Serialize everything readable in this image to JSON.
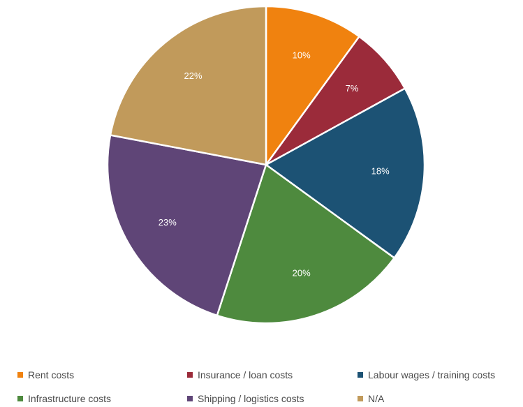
{
  "chart_data": {
    "type": "pie",
    "title": "",
    "start_angle_deg": 0,
    "direction": "clockwise",
    "legend_position": "bottom",
    "slices": [
      {
        "label": "Rent costs",
        "value": 10,
        "display": "10%",
        "color": "#F0820F"
      },
      {
        "label": "Insurance / loan costs",
        "value": 7,
        "display": "7%",
        "color": "#9B2B3A"
      },
      {
        "label": "Labour wages / training costs",
        "value": 18,
        "display": "18%",
        "color": "#1C5274"
      },
      {
        "label": "Infrastructure costs",
        "value": 20,
        "display": "20%",
        "color": "#4E8A3E"
      },
      {
        "label": "Shipping / logistics costs",
        "value": 23,
        "display": "23%",
        "color": "#5F4577"
      },
      {
        "label": "N/A",
        "value": 22,
        "display": "22%",
        "color": "#C19A5B"
      }
    ]
  }
}
